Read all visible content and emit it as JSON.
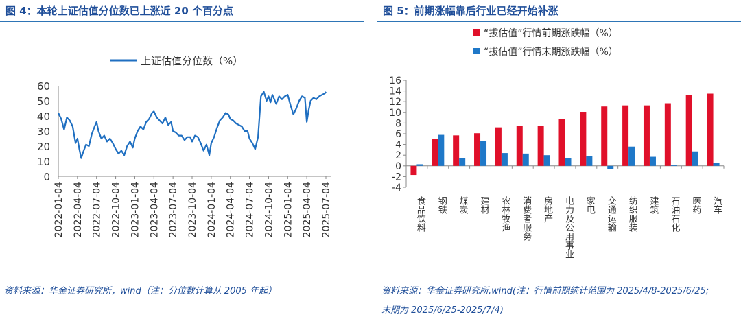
{
  "left": {
    "title": "图 4：本轮上证估值分位数已上涨近 20 个百分点",
    "source": "资料来源：华金证券研究所，wind（注：分位数计算从 2005 年起）"
  },
  "right": {
    "title": "图 5：前期涨幅靠后行业已经开始补涨",
    "source_line1": "资料来源：华金证券研究所,wind(注：行情前期统计范围为 2025/4/8-2025/6/25;",
    "source_line2": "末期为 2025/6/25-2025/7/4)"
  },
  "chart_data": [
    {
      "type": "line",
      "title": "",
      "legend": [
        "上证估值分位数（%）"
      ],
      "legend_position": "top",
      "ylim": [
        0,
        60
      ],
      "yticks": [
        0,
        10,
        20,
        30,
        40,
        50,
        60
      ],
      "xticks": [
        "2022-01-04",
        "2022-04-04",
        "2022-07-04",
        "2022-10-04",
        "2023-01-04",
        "2023-04-04",
        "2023-07-04",
        "2023-10-04",
        "2024-01-04",
        "2024-04-04",
        "2024-07-04",
        "2024-10-04",
        "2025-01-04",
        "2025-04-04",
        "2025-07-04"
      ],
      "color": "#1f6fc1",
      "series": [
        {
          "name": "上证估值分位数（%）",
          "x_quarters": [
            0,
            0.15,
            0.3,
            0.45,
            0.6,
            0.75,
            0.9,
            1.0,
            1.1,
            1.2,
            1.3,
            1.45,
            1.6,
            1.75,
            1.9,
            2.0,
            2.1,
            2.25,
            2.4,
            2.55,
            2.7,
            2.85,
            3.0,
            3.15,
            3.3,
            3.45,
            3.6,
            3.75,
            3.9,
            4.0,
            4.15,
            4.3,
            4.45,
            4.6,
            4.75,
            4.9,
            5.0,
            5.15,
            5.3,
            5.45,
            5.6,
            5.75,
            5.9,
            6.0,
            6.15,
            6.3,
            6.45,
            6.6,
            6.75,
            6.9,
            7.0,
            7.15,
            7.3,
            7.45,
            7.6,
            7.75,
            7.9,
            8.0,
            8.15,
            8.3,
            8.45,
            8.6,
            8.75,
            8.9,
            9.0,
            9.15,
            9.3,
            9.45,
            9.6,
            9.75,
            9.9,
            10.0,
            10.15,
            10.3,
            10.45,
            10.6,
            10.75,
            10.9,
            11.0,
            11.1,
            11.2,
            11.3,
            11.4,
            11.55,
            11.7,
            11.85,
            12.0,
            12.15,
            12.3,
            12.45,
            12.6,
            12.75,
            12.9,
            13.0,
            13.1,
            13.2,
            13.35,
            13.5,
            13.65,
            13.8,
            13.95,
            14.0
          ],
          "values": [
            42,
            38,
            31,
            39,
            37,
            33,
            22,
            25,
            18,
            12,
            16,
            21,
            20,
            28,
            33,
            36,
            30,
            25,
            27,
            23,
            25,
            22,
            18,
            15,
            17,
            14,
            20,
            23,
            19,
            25,
            30,
            33,
            31,
            36,
            38,
            42,
            43,
            39,
            37,
            35,
            39,
            34,
            36,
            30,
            29,
            27,
            27,
            24,
            26,
            26,
            23,
            27,
            26,
            22,
            17,
            21,
            14,
            22,
            26,
            32,
            37,
            39,
            42,
            41,
            38,
            37,
            35,
            34,
            33,
            30,
            30,
            25,
            22,
            18,
            26,
            53,
            56,
            50,
            53,
            49,
            54,
            51,
            48,
            53,
            51,
            53,
            54,
            47,
            41,
            45,
            50,
            53,
            52,
            36,
            44,
            50,
            52,
            51,
            53,
            54,
            55,
            56
          ]
        }
      ]
    },
    {
      "type": "bar",
      "title": "",
      "legend_position": "top",
      "ylim": [
        -4,
        16
      ],
      "yticks": [
        -4,
        -2,
        0,
        2,
        4,
        6,
        8,
        10,
        12,
        14,
        16
      ],
      "categories": [
        "食品饮料",
        "钢铁",
        "煤炭",
        "建材",
        "农林牧渔",
        "消费者服务",
        "房地产",
        "电力及公用事业",
        "家电",
        "交通运输",
        "纺织服装",
        "建筑",
        "石油石化",
        "医药",
        "汽车"
      ],
      "series": [
        {
          "name": "“拔估值”行情前期涨跌幅（%）",
          "color": "#e0102a",
          "values": [
            -1.7,
            5.1,
            5.7,
            6.1,
            7.2,
            7.5,
            7.5,
            8.8,
            10.1,
            11.1,
            11.3,
            11.3,
            11.7,
            13.2,
            13.5
          ]
        },
        {
          "name": "“拔估值”行情末期涨跌幅（%）",
          "color": "#1f78c8",
          "values": [
            0.3,
            5.8,
            1.4,
            4.7,
            2.4,
            2.3,
            2.0,
            1.4,
            1.8,
            -0.6,
            3.6,
            1.7,
            0.2,
            2.7,
            0.5
          ]
        }
      ]
    }
  ]
}
